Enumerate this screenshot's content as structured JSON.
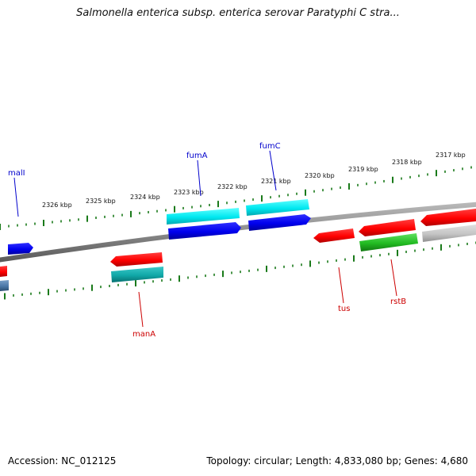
{
  "title": "Salmonella enterica subsp. enterica serovar Paratyphi C stra...",
  "footer": {
    "accession_label": "Accession:",
    "accession": "NC_012125",
    "topology_label": "Topology:",
    "topology": "circular",
    "length_label": "Length:",
    "length": "4,833,080 bp",
    "genes_label": "Genes:",
    "genes": "4,680"
  },
  "colors": {
    "forward_label": "#0000cc",
    "reverse_label": "#cc0000",
    "ticks": "#1a7a1a",
    "backbone": "#8a8a8a"
  },
  "scale": {
    "unit": "kbp",
    "labels": [
      "2326 kbp",
      "2325 kbp",
      "2324 kbp",
      "2323 kbp",
      "2322 kbp",
      "2321 kbp",
      "2320 kbp",
      "2319 kbp",
      "2318 kbp",
      "2317 kbp"
    ]
  },
  "genes": [
    {
      "name": "malI",
      "strand": "forward"
    },
    {
      "name": "fumA",
      "strand": "forward"
    },
    {
      "name": "fumC",
      "strand": "forward"
    },
    {
      "name": "manA",
      "strand": "reverse"
    },
    {
      "name": "tus",
      "strand": "reverse"
    },
    {
      "name": "rstB",
      "strand": "reverse"
    }
  ]
}
